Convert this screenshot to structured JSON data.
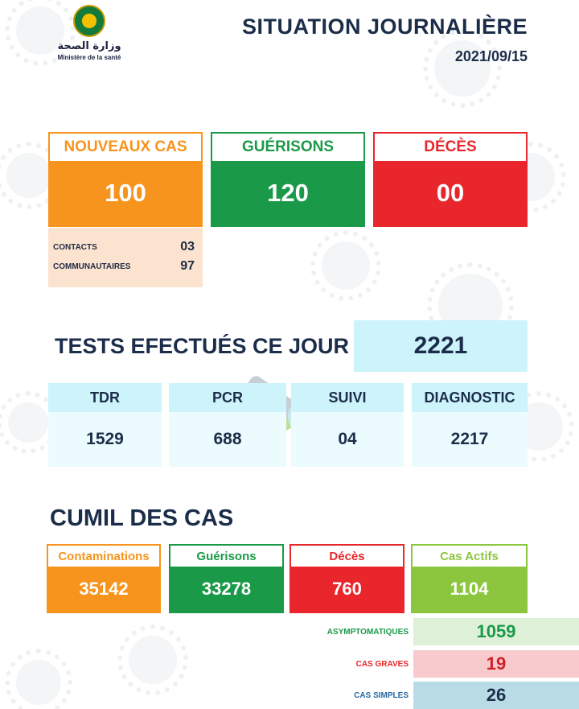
{
  "header": {
    "ministry_arabic": "وزارة الصحة",
    "ministry_french": "Ministère de la santé",
    "title": "SITUATION JOURNALIÈRE",
    "date": "2021/09/15"
  },
  "daily": {
    "new_cases": {
      "label": "NOUVEAUX CAS",
      "value": "100",
      "color": "#f7941d"
    },
    "recoveries": {
      "label": "GUÉRISONS",
      "value": "120",
      "color": "#1a9a48"
    },
    "deaths": {
      "label": "DÉCÈS",
      "value": "00",
      "color": "#e8262c"
    },
    "breakdown": [
      {
        "label": "CONTACTS",
        "value": "03"
      },
      {
        "label": "COMMUNAUTAIRES",
        "value": "97"
      }
    ]
  },
  "tests": {
    "title": "TESTS EFECTUÉS CE JOUR",
    "total": "2221",
    "columns": [
      {
        "label": "TDR",
        "value": "1529"
      },
      {
        "label": "PCR",
        "value": "688"
      },
      {
        "label": "SUIVI",
        "value": "04"
      },
      {
        "label": "DIAGNOSTIC",
        "value": "2217"
      }
    ]
  },
  "cumul": {
    "title": "CUMIL DES CAS",
    "cards": [
      {
        "label": "Contaminations",
        "value": "35142",
        "color": "#f7941d"
      },
      {
        "label": "Guérisons",
        "value": "33278",
        "color": "#1a9a48"
      },
      {
        "label": "Décès",
        "value": "760",
        "color": "#e8262c"
      },
      {
        "label": "Cas Actifs",
        "value": "1104",
        "color": "#8cc63f"
      }
    ],
    "active_breakdown": [
      {
        "label": "ASYMPTOMATIQUES",
        "value": "1059",
        "label_color": "#1a9a48",
        "bg": "#dff0d8",
        "value_color": "#1a9a48"
      },
      {
        "label": "CAS GRAVES",
        "value": "19",
        "label_color": "#e8262c",
        "bg": "#f8c9cd",
        "value_color": "#d01f27"
      },
      {
        "label": "CAS SIMPLES",
        "value": "26",
        "label_color": "#2a6aa0",
        "bg": "#b9dbe6",
        "value_color": "#1c2d4a"
      }
    ]
  }
}
